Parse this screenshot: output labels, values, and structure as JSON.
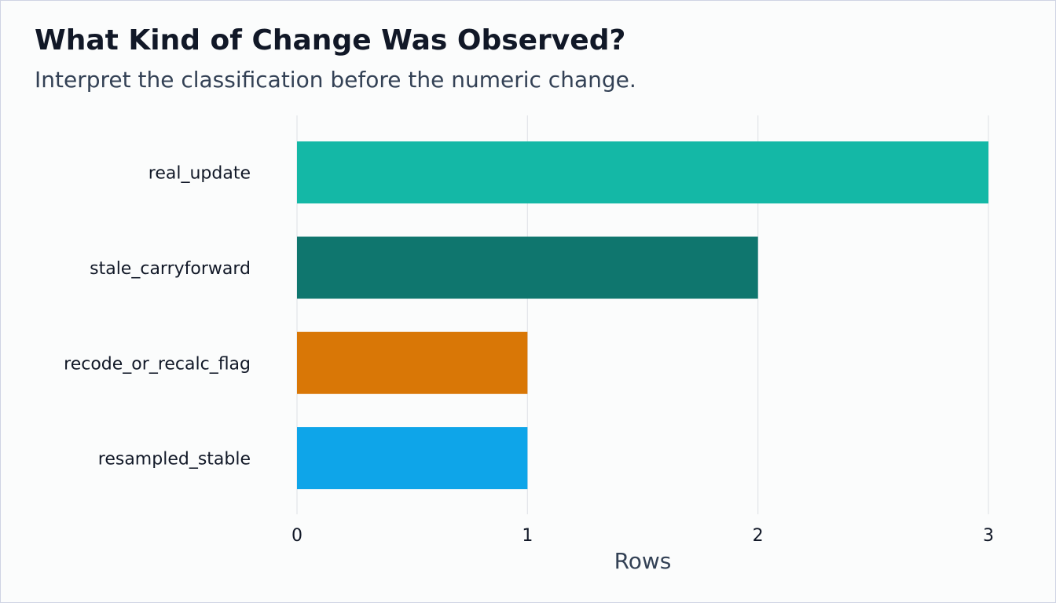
{
  "header": {
    "title": "What Kind of Change Was Observed?",
    "subtitle": "Interpret the classification before the numeric change."
  },
  "chart_data": {
    "type": "bar",
    "orientation": "horizontal",
    "title": "What Kind of Change Was Observed?",
    "subtitle": "Interpret the classification before the numeric change.",
    "xlabel": "Rows",
    "ylabel": "",
    "categories": [
      "real_update",
      "stale_carryforward",
      "recode_or_recalc_flag",
      "resampled_stable"
    ],
    "values": [
      3,
      2,
      1,
      1
    ],
    "colors": [
      "#14b8a6",
      "#0f766e",
      "#d97706",
      "#0ea5e9"
    ],
    "xlim": [
      0,
      3
    ],
    "xticks": [
      0,
      1,
      2,
      3
    ],
    "grid": "vertical",
    "legend": "none"
  }
}
